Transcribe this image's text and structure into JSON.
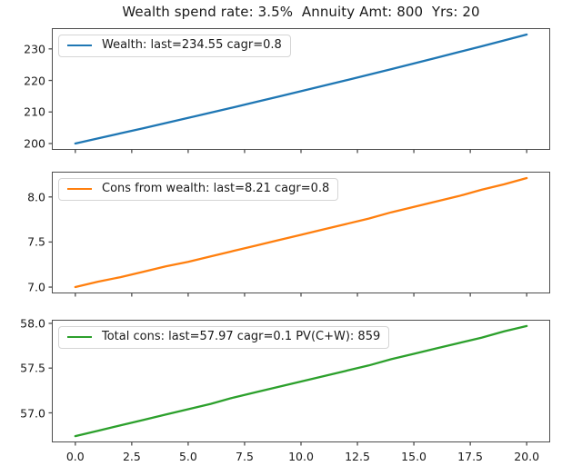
{
  "figure": {
    "title": "Wealth spend rate: 3.5%  Annuity Amt: 800  Yrs: 20",
    "background_color": "#ffffff",
    "spine_color": "#4d4d4d",
    "text_color": "#1a1a1a",
    "legend_border_color": "#d5d5d5",
    "legend_position": "upper left",
    "grid": false
  },
  "x_axis": {
    "xlim": [
      -1,
      21
    ],
    "ticks": [
      0,
      2.5,
      5,
      7.5,
      10,
      12.5,
      15,
      17.5,
      20
    ],
    "tick_labels": [
      "0.0",
      "2.5",
      "5.0",
      "7.5",
      "10.0",
      "12.5",
      "15.0",
      "17.5",
      "20.0"
    ]
  },
  "chart_data": [
    {
      "type": "line",
      "series_name": "Wealth",
      "legend": "Wealth: last=234.55 cagr=0.8",
      "color": "#1f77b4",
      "last": 234.55,
      "cagr": 0.8,
      "x": [
        0,
        1,
        2,
        3,
        4,
        5,
        6,
        7,
        8,
        9,
        10,
        11,
        12,
        13,
        14,
        15,
        16,
        17,
        18,
        19,
        20
      ],
      "y": [
        200.0,
        201.6,
        203.21,
        204.83,
        206.47,
        208.12,
        209.78,
        211.46,
        213.15,
        214.85,
        216.57,
        218.3,
        220.05,
        221.81,
        223.58,
        225.37,
        227.17,
        228.99,
        230.82,
        232.67,
        234.55
      ],
      "ylim": [
        198.27,
        236.28
      ],
      "yticks": [
        200,
        210,
        220,
        230
      ],
      "ytick_labels": [
        "200",
        "210",
        "220",
        "230"
      ],
      "show_x_labels": false
    },
    {
      "type": "line",
      "series_name": "Cons from wealth",
      "legend": "Cons from wealth: last=8.21 cagr=0.8",
      "color": "#ff7f0e",
      "last": 8.21,
      "cagr": 0.8,
      "x": [
        0,
        1,
        2,
        3,
        4,
        5,
        6,
        7,
        8,
        9,
        10,
        11,
        12,
        13,
        14,
        15,
        16,
        17,
        18,
        19,
        20
      ],
      "y": [
        7.0,
        7.06,
        7.11,
        7.17,
        7.23,
        7.28,
        7.34,
        7.4,
        7.46,
        7.52,
        7.58,
        7.64,
        7.7,
        7.76,
        7.83,
        7.89,
        7.95,
        8.01,
        8.08,
        8.14,
        8.21
      ],
      "ylim": [
        6.94,
        8.27
      ],
      "yticks": [
        7.0,
        7.5,
        8.0
      ],
      "ytick_labels": [
        "7.0",
        "7.5",
        "8.0"
      ],
      "show_x_labels": false
    },
    {
      "type": "line",
      "series_name": "Total cons",
      "legend": "Total cons: last=57.97 cagr=0.1 PV(C+W): 859",
      "color": "#2ca02c",
      "last": 57.97,
      "cagr": 0.1,
      "pv_c_plus_w": 859,
      "x": [
        0,
        1,
        2,
        3,
        4,
        5,
        6,
        7,
        8,
        9,
        10,
        11,
        12,
        13,
        14,
        15,
        16,
        17,
        18,
        19,
        20
      ],
      "y": [
        56.74,
        56.8,
        56.86,
        56.92,
        56.98,
        57.04,
        57.1,
        57.17,
        57.23,
        57.29,
        57.35,
        57.41,
        57.47,
        57.53,
        57.6,
        57.66,
        57.72,
        57.78,
        57.84,
        57.91,
        57.97
      ],
      "ylim": [
        56.68,
        58.03
      ],
      "yticks": [
        57.0,
        57.5,
        58.0
      ],
      "ytick_labels": [
        "57.0",
        "57.5",
        "58.0"
      ],
      "show_x_labels": true
    }
  ]
}
